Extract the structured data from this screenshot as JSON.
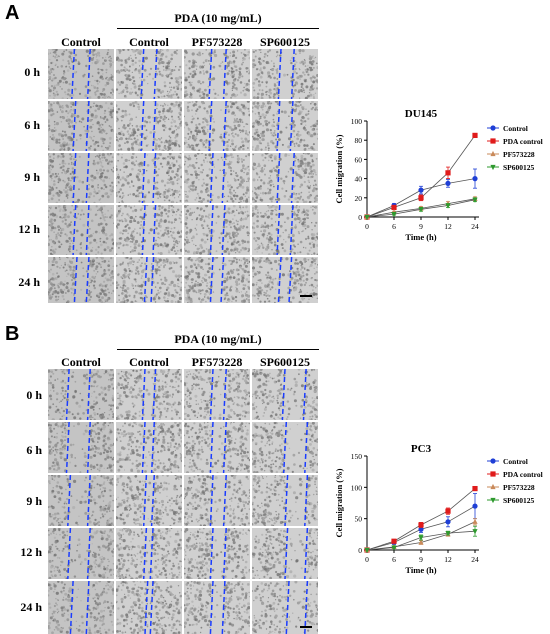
{
  "panels": [
    {
      "id": "A",
      "letter": "A",
      "group_label": "PDA (10 mg/mL)",
      "columns": [
        "Control",
        "Control",
        "PF573228",
        "SP600125"
      ],
      "rows": [
        "0 h",
        "6 h",
        "9 h",
        "12 h",
        "24 h"
      ],
      "chart_data": {
        "type": "line",
        "title": "DU145",
        "xlabel": "Time (h)",
        "ylabel": "Cell migration (%)",
        "x": [
          0,
          6,
          9,
          12,
          24
        ],
        "ylim": [
          0,
          100
        ],
        "yticks": [
          0,
          20,
          40,
          60,
          80,
          100
        ],
        "legend_position": "top-right",
        "series": [
          {
            "name": "Control",
            "color": "#1f3fd6",
            "marker": "circle",
            "values": [
              0,
              12,
              28,
              35,
              40
            ],
            "errors": [
              0,
              2,
              4,
              4,
              10
            ]
          },
          {
            "name": "PDA control",
            "color": "#e01b1b",
            "marker": "square",
            "values": [
              0,
              10,
              20,
              46,
              85
            ],
            "errors": [
              0,
              2,
              3,
              6,
              2
            ]
          },
          {
            "name": "PF573228",
            "color": "#c98a5a",
            "marker": "triangle",
            "values": [
              0,
              5,
              9,
              14,
              19
            ],
            "errors": [
              0,
              1,
              2,
              2,
              2
            ]
          },
          {
            "name": "SP600125",
            "color": "#2e9a2e",
            "marker": "triangle-down",
            "values": [
              0,
              3,
              8,
              12,
              18
            ],
            "errors": [
              0,
              1,
              2,
              2,
              2
            ]
          }
        ]
      }
    },
    {
      "id": "B",
      "letter": "B",
      "group_label": "PDA (10 mg/mL)",
      "columns": [
        "Control",
        "Control",
        "PF573228",
        "SP600125"
      ],
      "rows": [
        "0 h",
        "6 h",
        "9 h",
        "12 h",
        "24 h"
      ],
      "chart_data": {
        "type": "line",
        "title": "PC3",
        "xlabel": "Time (h)",
        "ylabel": "Cell migration (%)",
        "x": [
          0,
          6,
          9,
          12,
          24
        ],
        "ylim": [
          0,
          150
        ],
        "yticks": [
          0,
          50,
          100,
          150
        ],
        "legend_position": "top-right",
        "series": [
          {
            "name": "Control",
            "color": "#1f3fd6",
            "marker": "circle",
            "values": [
              0,
              12,
              33,
              45,
              70
            ],
            "errors": [
              0,
              3,
              5,
              8,
              20
            ]
          },
          {
            "name": "PDA control",
            "color": "#e01b1b",
            "marker": "square",
            "values": [
              0,
              14,
              40,
              62,
              98
            ],
            "errors": [
              0,
              2,
              4,
              5,
              3
            ]
          },
          {
            "name": "PF573228",
            "color": "#c98a5a",
            "marker": "triangle",
            "values": [
              0,
              5,
              12,
              25,
              45
            ],
            "errors": [
              0,
              1,
              3,
              3,
              5
            ]
          },
          {
            "name": "SP600125",
            "color": "#2e9a2e",
            "marker": "triangle-down",
            "values": [
              0,
              4,
              20,
              27,
              30
            ],
            "errors": [
              0,
              1,
              4,
              3,
              8
            ]
          }
        ]
      }
    }
  ]
}
